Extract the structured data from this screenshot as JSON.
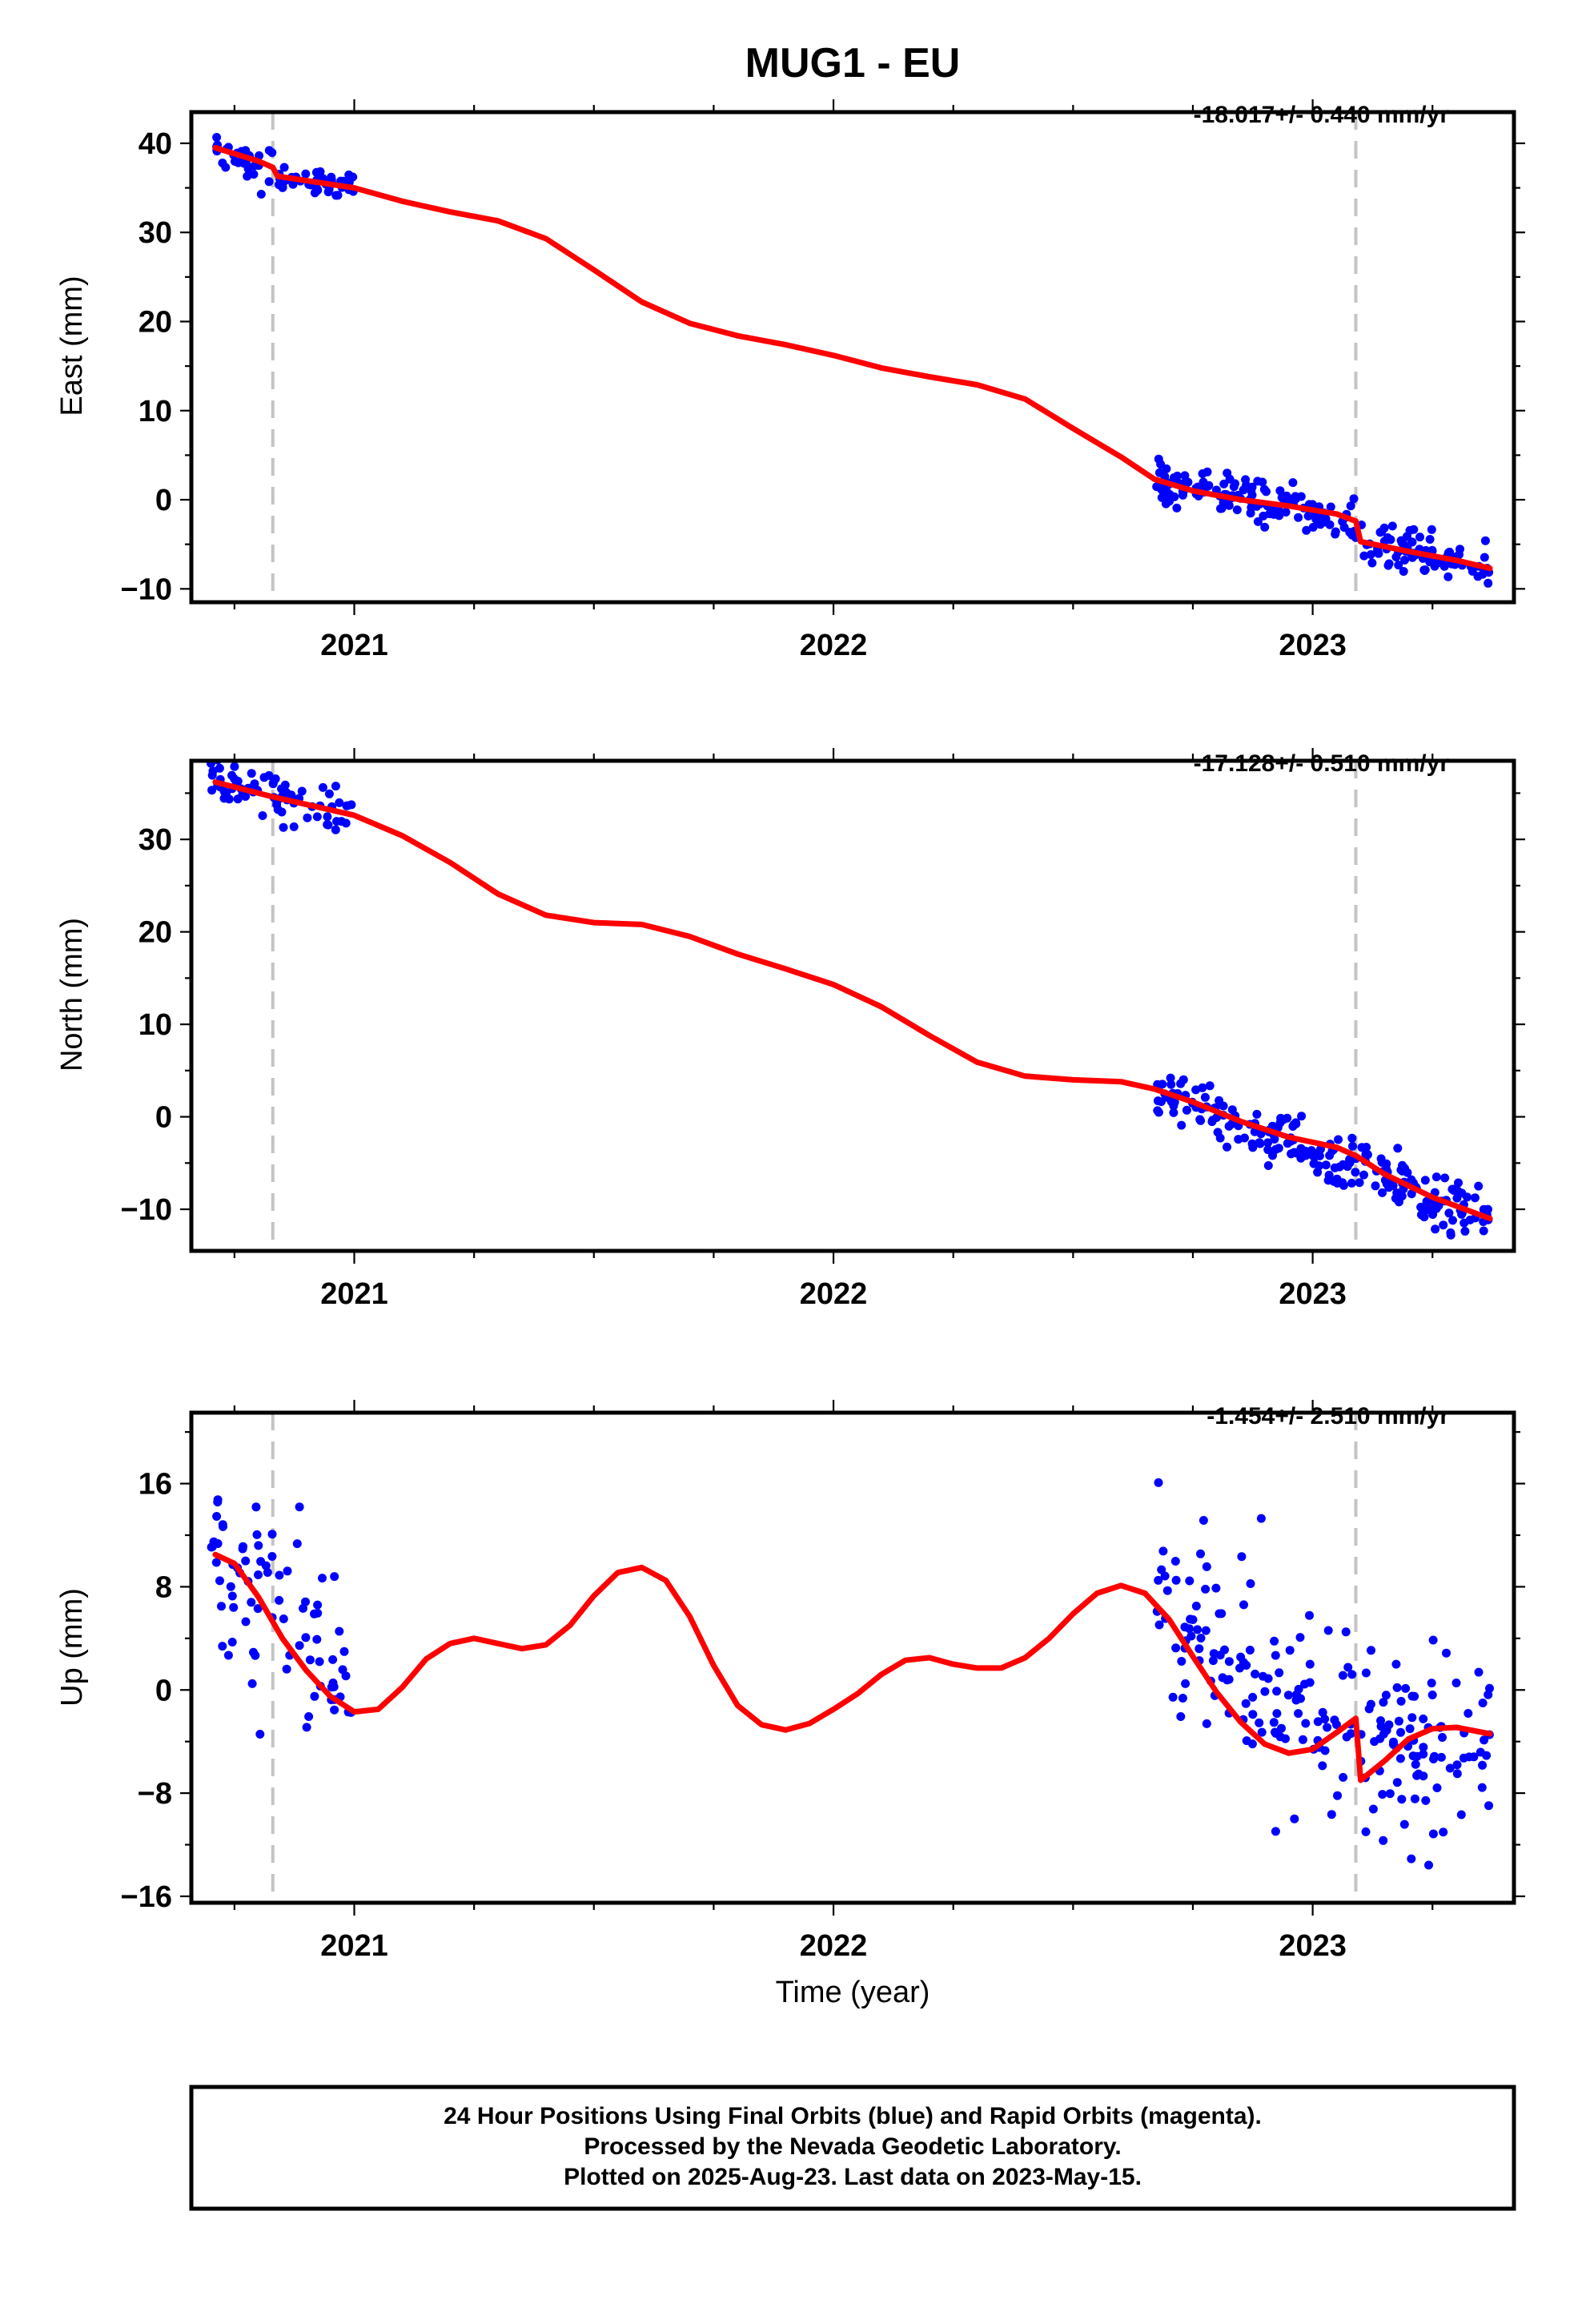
{
  "title": "MUG1 - EU",
  "footer": {
    "line1": "24 Hour Positions Using Final Orbits (blue) and Rapid Orbits (magenta).",
    "line2": "Processed by the Nevada Geodetic Laboratory.",
    "line3": "Plotted on 2025-Aug-23. Last data on 2023-May-15."
  },
  "colors": {
    "points": "#0000ff",
    "fit": "#ff0000",
    "event_lines": "#c4c4c4"
  },
  "chart_data": [
    {
      "type": "scatter",
      "title": "MUG1 - EU",
      "ylabel": "East (mm)",
      "xlabel": "",
      "xlim": [
        2020.66,
        2023.42
      ],
      "ylim": [
        -11.5,
        43.5
      ],
      "xticks": [
        2021,
        2022,
        2023
      ],
      "xtick_labels": [
        "2021",
        "2022",
        "2023"
      ],
      "yticks": [
        -10,
        0,
        10,
        20,
        30,
        40
      ],
      "ytick_labels": [
        "−10",
        "0",
        "10",
        "20",
        "30",
        "40"
      ],
      "rate_label": "-18.017+/- 0.440 mm/yr",
      "event_lines_x": [
        2020.83,
        2023.09
      ],
      "fit_x": [
        2020.71,
        2020.8,
        2020.83,
        2020.84,
        2021.0,
        2021.1,
        2021.2,
        2021.3,
        2021.4,
        2021.5,
        2021.6,
        2021.7,
        2021.8,
        2021.9,
        2022.0,
        2022.1,
        2022.2,
        2022.3,
        2022.4,
        2022.5,
        2022.6,
        2022.67,
        2022.75,
        2022.85,
        2022.95,
        2023.05,
        2023.09,
        2023.1,
        2023.2,
        2023.3,
        2023.37
      ],
      "fit_y": [
        39.5,
        38.0,
        37.3,
        36.3,
        35.0,
        33.5,
        32.3,
        31.3,
        29.3,
        25.8,
        22.2,
        19.8,
        18.4,
        17.4,
        16.2,
        14.8,
        13.8,
        12.9,
        11.3,
        8.0,
        4.8,
        2.3,
        1.0,
        0.0,
        -0.7,
        -1.6,
        -2.4,
        -4.7,
        -5.8,
        -6.8,
        -7.7
      ],
      "points": {
        "segments": [
          {
            "x_range": [
              2020.7,
              2020.83
            ],
            "slope_mm_per_yr": -18.0,
            "start": 39.5,
            "scatter": 1.1,
            "count": 30
          },
          {
            "x_range": [
              2020.84,
              2021.0
            ],
            "slope_mm_per_yr": -10.0,
            "start": 36.3,
            "scatter": 0.9,
            "count": 45
          },
          {
            "x_range": [
              2022.67,
              2023.09
            ],
            "slope_mm_per_yr": -11.0,
            "start": 2.3,
            "scatter": 1.1,
            "count": 140
          },
          {
            "x_range": [
              2023.1,
              2023.37
            ],
            "slope_mm_per_yr": -11.0,
            "start": -4.8,
            "scatter": 1.0,
            "count": 80
          }
        ]
      }
    },
    {
      "type": "scatter",
      "title": "",
      "ylabel": "North (mm)",
      "xlabel": "",
      "xlim": [
        2020.66,
        2023.42
      ],
      "ylim": [
        -14.5,
        38.5
      ],
      "xticks": [
        2021,
        2022,
        2023
      ],
      "xtick_labels": [
        "2021",
        "2022",
        "2023"
      ],
      "yticks": [
        -10,
        0,
        10,
        20,
        30
      ],
      "ytick_labels": [
        "−10",
        "0",
        "10",
        "20",
        "30"
      ],
      "rate_label": "-17.128+/- 0.510 mm/yr",
      "event_lines_x": [
        2020.83,
        2023.09
      ],
      "fit_x": [
        2020.71,
        2020.83,
        2021.0,
        2021.1,
        2021.2,
        2021.3,
        2021.4,
        2021.5,
        2021.6,
        2021.7,
        2021.8,
        2021.9,
        2022.0,
        2022.1,
        2022.2,
        2022.3,
        2022.4,
        2022.5,
        2022.6,
        2022.67,
        2022.75,
        2022.85,
        2022.95,
        2023.05,
        2023.09,
        2023.15,
        2023.25,
        2023.37
      ],
      "fit_y": [
        36.2,
        34.6,
        32.6,
        30.4,
        27.5,
        24.1,
        21.8,
        21.0,
        20.8,
        19.5,
        17.6,
        16.0,
        14.3,
        11.9,
        8.8,
        5.9,
        4.4,
        4.0,
        3.8,
        3.0,
        1.6,
        -0.5,
        -2.2,
        -3.3,
        -4.2,
        -6.2,
        -8.7,
        -11.0
      ],
      "points": {
        "segments": [
          {
            "x_range": [
              2020.7,
              2021.0
            ],
            "slope_mm_per_yr": -12.0,
            "start": 36.0,
            "scatter": 1.1,
            "count": 75
          },
          {
            "x_range": [
              2022.67,
              2023.37
            ],
            "slope_mm_per_yr": -19.0,
            "start": 2.5,
            "scatter": 1.5,
            "count": 220
          }
        ]
      }
    },
    {
      "type": "scatter",
      "title": "",
      "ylabel": "Up (mm)",
      "xlabel": "Time (year)",
      "xlim": [
        2020.66,
        2023.42
      ],
      "ylim": [
        -16.5,
        21.5
      ],
      "xticks": [
        2021,
        2022,
        2023
      ],
      "xtick_labels": [
        "2021",
        "2022",
        "2023"
      ],
      "yticks": [
        -16,
        -8,
        0,
        8,
        16
      ],
      "ytick_labels": [
        "−16",
        "−8",
        "0",
        "8",
        "16"
      ],
      "rate_label": "-1.454+/- 2.510 mm/yr",
      "event_lines_x": [
        2020.83,
        2023.09
      ],
      "fit_x": [
        2020.71,
        2020.75,
        2020.8,
        2020.85,
        2020.9,
        2020.95,
        2021.0,
        2021.05,
        2021.1,
        2021.15,
        2021.2,
        2021.25,
        2021.3,
        2021.35,
        2021.4,
        2021.45,
        2021.5,
        2021.55,
        2021.6,
        2021.65,
        2021.7,
        2021.75,
        2021.8,
        2021.85,
        2021.9,
        2021.95,
        2022.0,
        2022.05,
        2022.1,
        2022.15,
        2022.2,
        2022.25,
        2022.3,
        2022.35,
        2022.4,
        2022.45,
        2022.5,
        2022.55,
        2022.6,
        2022.65,
        2022.7,
        2022.75,
        2022.8,
        2022.85,
        2022.9,
        2022.95,
        2023.0,
        2023.05,
        2023.09,
        2023.1,
        2023.15,
        2023.2,
        2023.25,
        2023.3,
        2023.37
      ],
      "fit_y": [
        10.5,
        9.8,
        7.2,
        4.0,
        1.5,
        -0.5,
        -1.7,
        -1.5,
        0.2,
        2.4,
        3.6,
        4.0,
        3.6,
        3.2,
        3.5,
        5.0,
        7.3,
        9.1,
        9.5,
        8.5,
        5.7,
        1.9,
        -1.2,
        -2.7,
        -3.1,
        -2.6,
        -1.5,
        -0.3,
        1.2,
        2.3,
        2.5,
        2.0,
        1.7,
        1.7,
        2.5,
        4.0,
        5.9,
        7.5,
        8.1,
        7.5,
        5.5,
        2.6,
        -0.2,
        -2.5,
        -4.2,
        -4.9,
        -4.6,
        -3.3,
        -2.2,
        -7.0,
        -5.5,
        -3.8,
        -3.0,
        -2.9,
        -3.4
      ],
      "points": {
        "segments": [
          {
            "x_range": [
              2020.7,
              2021.0
            ],
            "slope_mm_per_yr": -30.0,
            "start": 10.5,
            "scatter": 3.8,
            "count": 80
          },
          {
            "x_range": [
              2022.67,
              2023.09
            ],
            "slope_mm_per_yr": -30.0,
            "start": 8.0,
            "scatter": 4.0,
            "count": 120
          },
          {
            "x_range": [
              2023.1,
              2023.37
            ],
            "slope_mm_per_yr": 8.0,
            "start": -5.0,
            "scatter": 3.8,
            "count": 90
          }
        ]
      }
    }
  ]
}
